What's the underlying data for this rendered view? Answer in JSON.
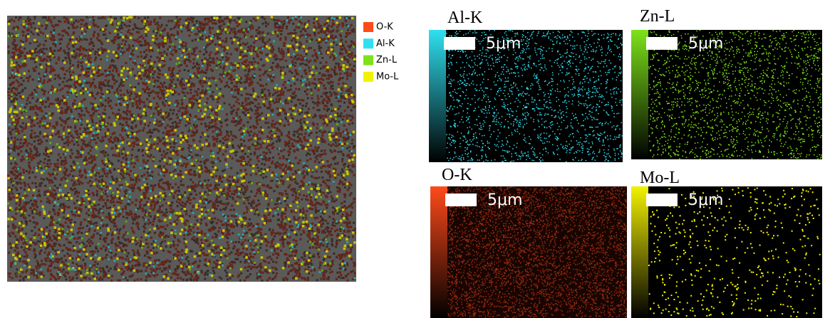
{
  "legend": [
    {
      "label": "O-K",
      "color": "#ff4a1a"
    },
    {
      "label": "Al-K",
      "color": "#2fe0f0"
    },
    {
      "label": "Zn-L",
      "color": "#7ee21a"
    },
    {
      "label": "Mo-L",
      "color": "#f2f200"
    }
  ],
  "panels": [
    {
      "title": "Al-K",
      "scale_label": "5μm",
      "color": "#2fe0f0"
    },
    {
      "title": "Zn-L",
      "scale_label": "5μm",
      "color": "#7ee21a"
    },
    {
      "title": "O-K",
      "scale_label": "5μm",
      "color": "#ff4a1a"
    },
    {
      "title": "Mo-L",
      "scale_label": "5μm",
      "color": "#f2f200"
    }
  ]
}
